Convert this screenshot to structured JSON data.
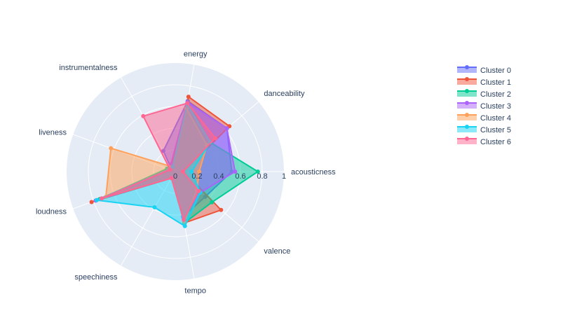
{
  "chart_data": {
    "type": "radar",
    "title": "",
    "axes": [
      "acousticness",
      "danceability",
      "energy",
      "instrumentalness",
      "liveness",
      "loudness",
      "speechiness",
      "tempo",
      "valence"
    ],
    "radial_range": [
      0,
      1
    ],
    "radial_ticks": [
      "0",
      "0.2",
      "0.4",
      "0.6",
      "0.8",
      "1"
    ],
    "grid": true,
    "legend_position": "right",
    "series": [
      {
        "name": "Cluster 0",
        "color": "#636efa",
        "values": [
          0.52,
          0.62,
          0.66,
          0.22,
          0.03,
          0.77,
          0.06,
          0.42,
          0.36
        ]
      },
      {
        "name": "Cluster 1",
        "color": "#ef553b",
        "values": [
          0.08,
          0.65,
          0.7,
          0.06,
          0.06,
          0.82,
          0.07,
          0.48,
          0.55
        ]
      },
      {
        "name": "Cluster 2",
        "color": "#00cc96",
        "values": [
          0.76,
          0.42,
          0.65,
          0.05,
          0.08,
          0.74,
          0.06,
          0.48,
          0.44
        ]
      },
      {
        "name": "Cluster 3",
        "color": "#ab63fa",
        "values": [
          0.55,
          0.62,
          0.65,
          0.08,
          0.06,
          0.78,
          0.06,
          0.43,
          0.3
        ]
      },
      {
        "name": "Cluster 4",
        "color": "#ffa15a",
        "values": [
          0.22,
          0.38,
          0.59,
          0.05,
          0.63,
          0.68,
          0.07,
          0.47,
          0.26
        ]
      },
      {
        "name": "Cluster 5",
        "color": "#19d3f3",
        "values": [
          0.15,
          0.42,
          0.63,
          0.05,
          0.05,
          0.77,
          0.38,
          0.51,
          0.3
        ]
      },
      {
        "name": "Cluster 6",
        "color": "#ff6692",
        "values": [
          0.07,
          0.48,
          0.64,
          0.59,
          0.05,
          0.72,
          0.07,
          0.45,
          0.28
        ]
      }
    ]
  }
}
